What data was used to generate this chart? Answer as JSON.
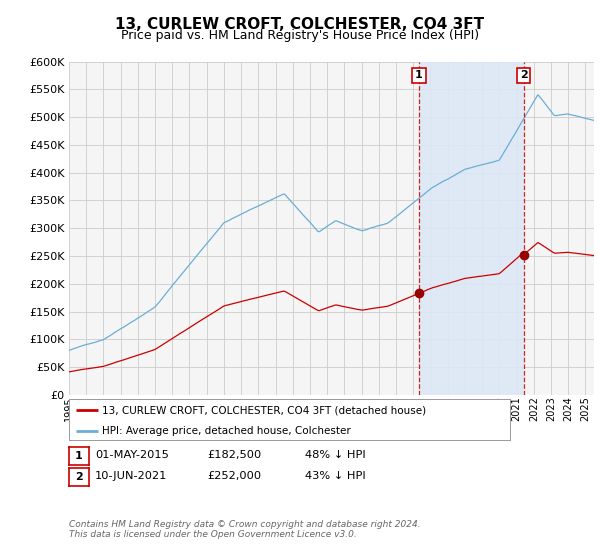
{
  "title": "13, CURLEW CROFT, COLCHESTER, CO4 3FT",
  "subtitle": "Price paid vs. HM Land Registry's House Price Index (HPI)",
  "title_fontsize": 11,
  "subtitle_fontsize": 9,
  "hpi_color": "#6aaed6",
  "price_color": "#cc0000",
  "marker_color": "#990000",
  "dashed_color": "#cc0000",
  "shade_color": "#dde8f5",
  "ylim": [
    0,
    600000
  ],
  "ytick_step": 50000,
  "legend_label_property": "13, CURLEW CROFT, COLCHESTER, CO4 3FT (detached house)",
  "legend_label_hpi": "HPI: Average price, detached house, Colchester",
  "annotation1_label": "1",
  "annotation1_date": "01-MAY-2015",
  "annotation1_price": "£182,500",
  "annotation1_pct": "48% ↓ HPI",
  "annotation2_label": "2",
  "annotation2_date": "10-JUN-2021",
  "annotation2_price": "£252,000",
  "annotation2_pct": "43% ↓ HPI",
  "footer": "Contains HM Land Registry data © Crown copyright and database right 2024.\nThis data is licensed under the Open Government Licence v3.0.",
  "background_color": "#ffffff",
  "plot_bg_color": "#f5f5f5",
  "grid_color": "#cccccc"
}
